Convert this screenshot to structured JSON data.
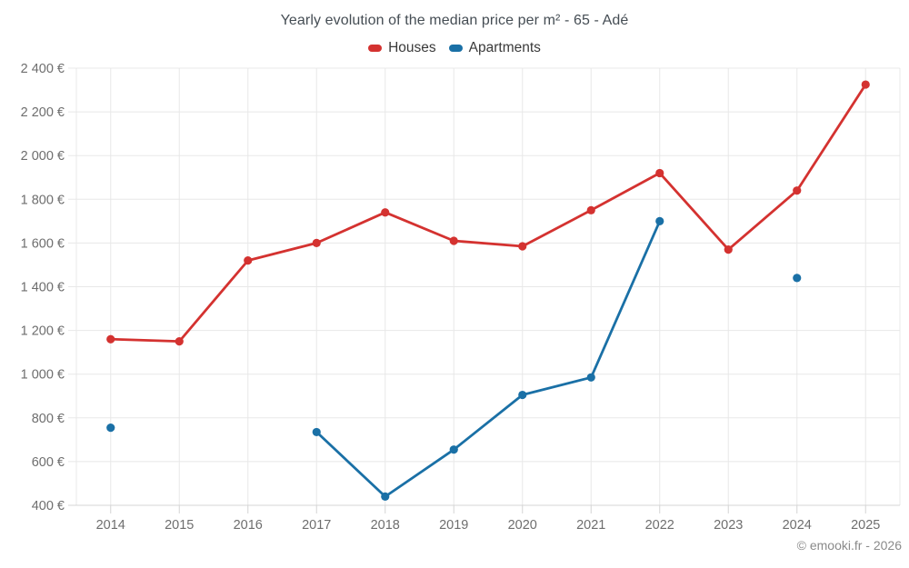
{
  "title": "Yearly evolution of the median price per m² - 65 - Adé",
  "footer": "© emooki.fr - 2026",
  "colors": {
    "houses": "#d43230",
    "apartments": "#1a70a6",
    "gridline": "#e8e8e8",
    "axis_line": "#d4d4d4",
    "tick_text": "#6e6e6e",
    "title_text": "#454d54",
    "footer_text": "#8a8a8a"
  },
  "chart_data": {
    "type": "line",
    "title": "Yearly evolution of the median price per m² - 65 - Adé",
    "categories": [
      "2014",
      "2015",
      "2016",
      "2017",
      "2018",
      "2019",
      "2020",
      "2021",
      "2022",
      "2023",
      "2024",
      "2025"
    ],
    "series": [
      {
        "name": "Houses",
        "color": "#d43230",
        "values": [
          1160,
          1150,
          1520,
          1600,
          1740,
          1610,
          1585,
          1750,
          1920,
          1570,
          1840,
          2325
        ]
      },
      {
        "name": "Apartments",
        "color": "#1a70a6",
        "values": [
          755,
          null,
          null,
          735,
          440,
          655,
          905,
          985,
          1700,
          null,
          1440,
          null
        ]
      }
    ],
    "xlabel": "",
    "ylabel": "",
    "ylim": [
      400,
      2400
    ],
    "ytick_step": 200,
    "ytick_suffix": " €",
    "grid": true,
    "legend_position": "top",
    "marker": "circle"
  }
}
